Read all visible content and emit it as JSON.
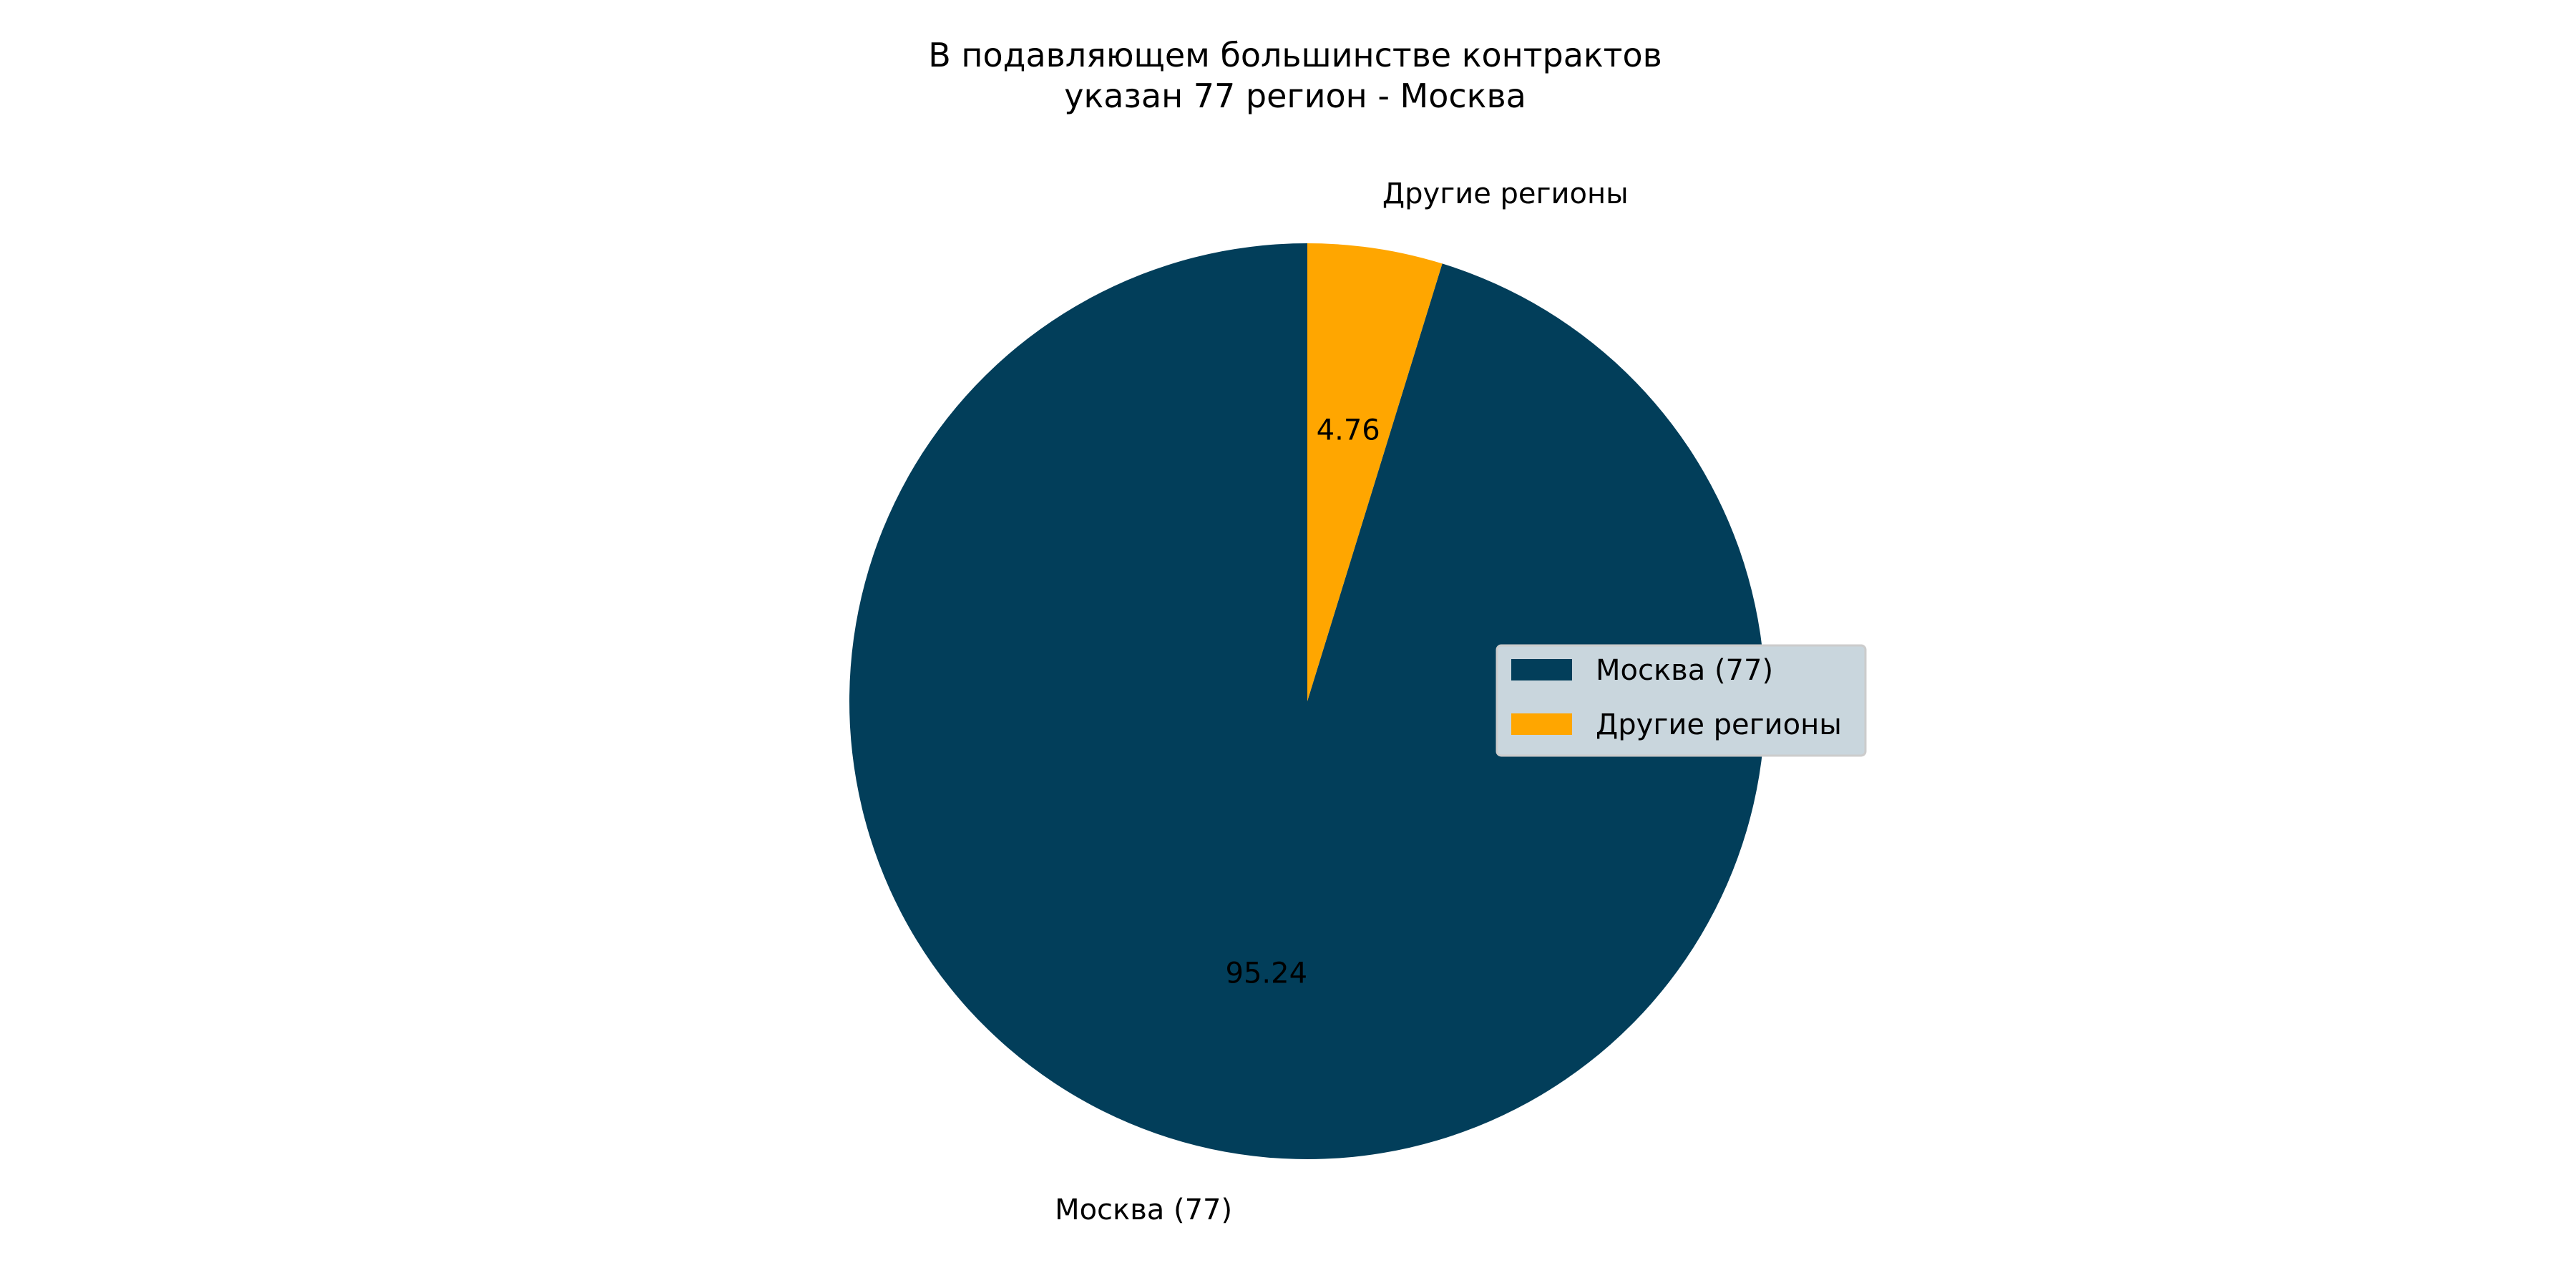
{
  "chart_data": {
    "type": "pie",
    "title_lines": [
      "В подавляющем большинстве контрактов",
      "указан 77 регион - Москва"
    ],
    "slices": [
      {
        "label": "Москва (77)",
        "value": 95.24,
        "value_label": "95.24",
        "color": "#023e5a"
      },
      {
        "label": "Другие регионы",
        "value": 4.76,
        "value_label": "4.76",
        "color": "#ffa600"
      }
    ],
    "legend": {
      "placement": "right",
      "entries": [
        "Москва (77)",
        "Другие регионы"
      ]
    }
  }
}
